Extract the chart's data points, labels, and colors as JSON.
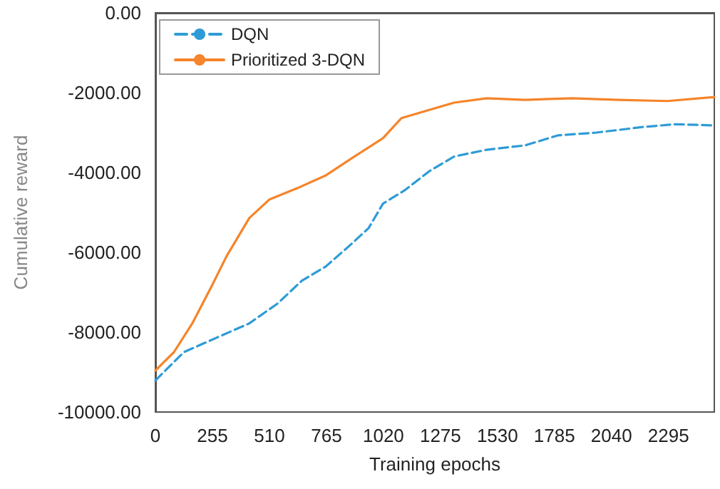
{
  "chart_data": {
    "type": "line",
    "xlabel": "Training epochs",
    "ylabel": "Cumulative reward",
    "xlim": [
      0,
      2500
    ],
    "xticks": [
      0,
      255,
      510,
      765,
      1020,
      1275,
      1530,
      1785,
      2040,
      2295
    ],
    "ylim": [
      -10000,
      0
    ],
    "yticks": [
      {
        "value": -10000,
        "label": "-10000.00"
      },
      {
        "value": -8000,
        "label": "-8000.00"
      },
      {
        "value": -6000,
        "label": "-6000.00"
      },
      {
        "value": -4000,
        "label": "-4000.00"
      },
      {
        "value": -2000,
        "label": "-2000.00"
      },
      {
        "value": 0,
        "label": "0.00"
      }
    ],
    "grid": false,
    "legend": "top left",
    "marker": "none",
    "series": [
      {
        "name": "DQN",
        "color": "#2e9bd6",
        "line_style": "dashed",
        "x": [
          0,
          127,
          273,
          420,
          547,
          655,
          763,
          865,
          954,
          1018,
          1119,
          1227,
          1336,
          1482,
          1654,
          1800,
          1972,
          2181,
          2328,
          2500
        ],
        "values": [
          -9210,
          -8500,
          -8140,
          -7780,
          -7280,
          -6710,
          -6350,
          -5850,
          -5390,
          -4780,
          -4430,
          -3960,
          -3600,
          -3430,
          -3320,
          -3070,
          -3000,
          -2860,
          -2790,
          -2820
        ]
      },
      {
        "name": "Prioritized 3-DQN",
        "color": "#f5842a",
        "line_style": "solid",
        "x": [
          0,
          83,
          165,
          254,
          318,
          420,
          509,
          636,
          763,
          890,
          1018,
          1100,
          1227,
          1336,
          1482,
          1654,
          1863,
          2073,
          2290,
          2500
        ],
        "values": [
          -8960,
          -8500,
          -7780,
          -6820,
          -6100,
          -5140,
          -4680,
          -4390,
          -4070,
          -3600,
          -3140,
          -2640,
          -2430,
          -2250,
          -2140,
          -2180,
          -2140,
          -2180,
          -2210,
          -2110
        ]
      }
    ]
  }
}
